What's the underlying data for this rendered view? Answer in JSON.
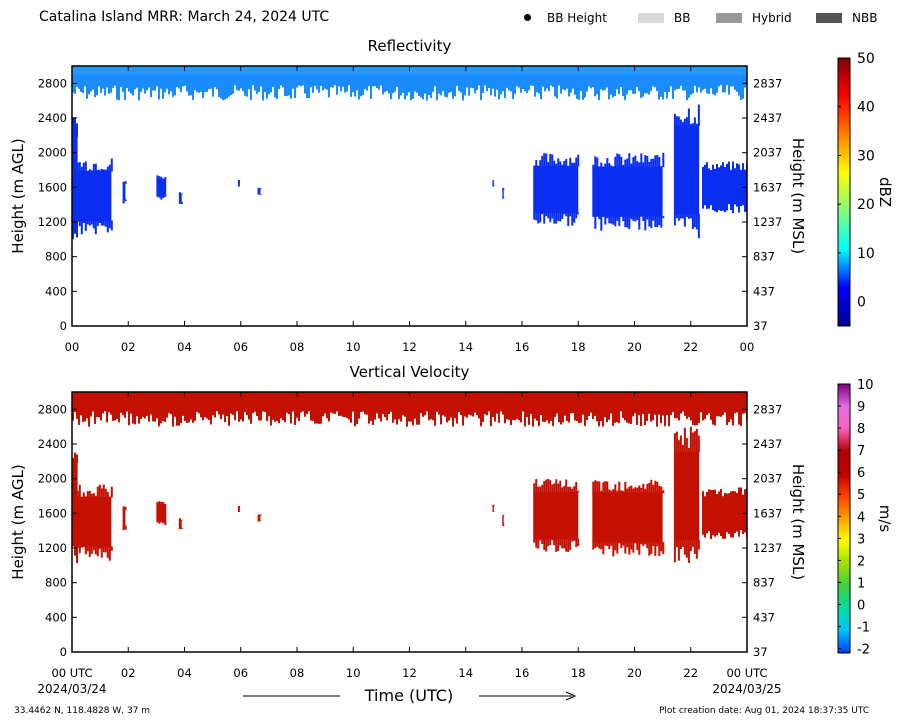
{
  "figure": {
    "title": "Catalina Island MRR:  March 24, 2024 UTC",
    "legend": [
      {
        "label": "BB Height",
        "marker": "dot",
        "color": "#000000"
      },
      {
        "label": "BB",
        "marker": "swatch",
        "color": "#d9d9d9"
      },
      {
        "label": "Hybrid",
        "marker": "swatch",
        "color": "#999999"
      },
      {
        "label": "NBB",
        "marker": "swatch",
        "color": "#555555"
      }
    ],
    "xlabel": "Time (UTC)",
    "start_date": "2024/03/24",
    "end_date": "2024/03/25",
    "location": "33.4462 N, 118.4828 W, 37 m",
    "creation": "Plot creation date: Aug 01, 2024 18:37:35 UTC"
  },
  "chart_data": [
    {
      "type": "heatmap",
      "title": "Reflectivity",
      "x_ticks": [
        "00",
        "02",
        "04",
        "06",
        "08",
        "10",
        "12",
        "14",
        "16",
        "18",
        "20",
        "22",
        "00"
      ],
      "xlim_hours": [
        0,
        24
      ],
      "ylabel": "Height (m AGL)",
      "y_ticks": [
        0,
        400,
        800,
        1200,
        1600,
        2000,
        2400,
        2800
      ],
      "ylim": [
        0,
        3000
      ],
      "y2label": "Height (m MSL)",
      "y2_ticks": [
        37,
        437,
        837,
        1237,
        1637,
        2037,
        2437,
        2837
      ],
      "colorbar": {
        "label": "dBZ",
        "range": [
          -5,
          50
        ],
        "ticks": [
          0,
          10,
          20,
          30,
          40,
          50
        ],
        "colormap": [
          "#00008f",
          "#0000ff",
          "#00ffff",
          "#7fff7f",
          "#ffff00",
          "#ff8000",
          "#ff0000",
          "#7f0000"
        ]
      },
      "fill_color": "#0a2ef0",
      "upper_band_color": "#1a8cff",
      "regions": [
        {
          "t0": 0,
          "t1": 24,
          "h0": 2600,
          "h1": 3000
        },
        {
          "t0": 0,
          "t1": 0.2,
          "h0": 1000,
          "h1": 2450
        },
        {
          "t0": 0.1,
          "t1": 1.4,
          "h0": 1050,
          "h1": 1950
        },
        {
          "t0": 1.8,
          "t1": 1.9,
          "h0": 1400,
          "h1": 1700
        },
        {
          "t0": 3.0,
          "t1": 3.35,
          "h0": 1450,
          "h1": 1750
        },
        {
          "t0": 3.8,
          "t1": 3.9,
          "h0": 1400,
          "h1": 1550
        },
        {
          "t0": 5.9,
          "t1": 5.97,
          "h0": 1600,
          "h1": 1700
        },
        {
          "t0": 6.6,
          "t1": 6.7,
          "h0": 1500,
          "h1": 1600
        },
        {
          "t0": 14.95,
          "t1": 15.0,
          "h0": 1600,
          "h1": 1700
        },
        {
          "t0": 15.3,
          "t1": 15.35,
          "h0": 1450,
          "h1": 1600
        },
        {
          "t0": 16.4,
          "t1": 18.0,
          "h0": 1150,
          "h1": 2000
        },
        {
          "t0": 18.5,
          "t1": 21.0,
          "h0": 1100,
          "h1": 2000
        },
        {
          "t0": 21.4,
          "t1": 22.3,
          "h0": 1000,
          "h1": 2600
        },
        {
          "t0": 22.4,
          "t1": 24,
          "h0": 1300,
          "h1": 1900
        }
      ]
    },
    {
      "type": "heatmap",
      "title": "Vertical Velocity",
      "x_ticks": [
        "00 UTC",
        "02",
        "04",
        "06",
        "08",
        "10",
        "12",
        "14",
        "16",
        "18",
        "20",
        "22",
        "00 UTC"
      ],
      "xlim_hours": [
        0,
        24
      ],
      "ylabel": "Height (m AGL)",
      "y_ticks": [
        0,
        400,
        800,
        1200,
        1600,
        2000,
        2400,
        2800
      ],
      "ylim": [
        0,
        3000
      ],
      "y2label": "Height (m MSL)",
      "y2_ticks": [
        37,
        437,
        837,
        1237,
        1637,
        2037,
        2437,
        2837
      ],
      "colorbar": {
        "label": "m/s",
        "range": [
          -2.2,
          10
        ],
        "ticks": [
          -2,
          -1,
          0,
          1,
          2,
          3,
          4,
          5,
          6,
          7,
          8,
          9,
          10
        ],
        "colormap": [
          "#0040ff",
          "#00c0ff",
          "#00e0a0",
          "#40d040",
          "#a0e000",
          "#ffff00",
          "#ffa000",
          "#ff4000",
          "#c00000",
          "#b00000",
          "#ff60c0",
          "#e070e0",
          "#800080"
        ]
      },
      "fill_color": "#c41000",
      "upper_band_color": "#c41000",
      "regions": [
        {
          "t0": 0,
          "t1": 24,
          "h0": 2600,
          "h1": 3000
        },
        {
          "t0": 0,
          "t1": 0.2,
          "h0": 1000,
          "h1": 2450
        },
        {
          "t0": 0.1,
          "t1": 1.4,
          "h0": 1050,
          "h1": 1950
        },
        {
          "t0": 1.8,
          "t1": 1.9,
          "h0": 1400,
          "h1": 1700
        },
        {
          "t0": 3.0,
          "t1": 3.35,
          "h0": 1450,
          "h1": 1750
        },
        {
          "t0": 3.8,
          "t1": 3.9,
          "h0": 1400,
          "h1": 1550
        },
        {
          "t0": 5.9,
          "t1": 5.97,
          "h0": 1600,
          "h1": 1700
        },
        {
          "t0": 6.6,
          "t1": 6.7,
          "h0": 1500,
          "h1": 1600
        },
        {
          "t0": 14.95,
          "t1": 15.0,
          "h0": 1600,
          "h1": 1700
        },
        {
          "t0": 15.3,
          "t1": 15.35,
          "h0": 1450,
          "h1": 1600
        },
        {
          "t0": 16.4,
          "t1": 18.0,
          "h0": 1150,
          "h1": 2000
        },
        {
          "t0": 18.5,
          "t1": 21.0,
          "h0": 1100,
          "h1": 2000
        },
        {
          "t0": 21.4,
          "t1": 22.3,
          "h0": 1000,
          "h1": 2600
        },
        {
          "t0": 22.4,
          "t1": 24,
          "h0": 1300,
          "h1": 1900
        }
      ]
    }
  ]
}
